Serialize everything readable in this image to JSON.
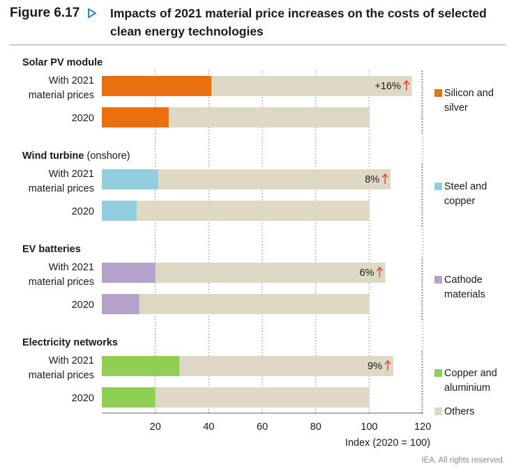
{
  "figure": {
    "number": "Figure 6.17",
    "title": "Impacts of 2021 material price increases on the costs of selected clean energy technologies",
    "source": "IEA. All rights reserved."
  },
  "chart_data": {
    "type": "bar",
    "orientation": "horizontal",
    "stacked": true,
    "xlabel": "Index (2020 = 100)",
    "xlim": [
      0,
      120
    ],
    "xticks": [
      20,
      40,
      60,
      80,
      100,
      120
    ],
    "grid": "vertical dotted",
    "row_labels": [
      "With 2021 material prices",
      "2020"
    ],
    "panels": [
      {
        "title": "Solar PV module",
        "title_suffix": "",
        "material_label": "Silicon and silver",
        "material_color": "#e8700e",
        "rows": [
          {
            "label": "With 2021 material prices",
            "material": 41,
            "total": 116
          },
          {
            "label": "2020",
            "material": 25,
            "total": 100
          }
        ],
        "increase_label": "+16%"
      },
      {
        "title": "Wind turbine",
        "title_suffix": "(onshore)",
        "material_label": "Steel and copper",
        "material_color": "#92cde0",
        "rows": [
          {
            "label": "With 2021 material prices",
            "material": 21,
            "total": 108
          },
          {
            "label": "2020",
            "material": 13,
            "total": 100
          }
        ],
        "increase_label": "8%"
      },
      {
        "title": "EV batteries",
        "title_suffix": "",
        "material_label": "Cathode materials",
        "material_color": "#b4a2cb",
        "rows": [
          {
            "label": "With 2021 material prices",
            "material": 20,
            "total": 106
          },
          {
            "label": "2020",
            "material": 14,
            "total": 100
          }
        ],
        "increase_label": "6%"
      },
      {
        "title": "Electricity networks",
        "title_suffix": "",
        "material_label": "Copper and aluminium",
        "material_color": "#8fd054",
        "rows": [
          {
            "label": "With 2021 material prices",
            "material": 29,
            "total": 109
          },
          {
            "label": "2020",
            "material": 20,
            "total": 100
          }
        ],
        "increase_label": "9%"
      }
    ],
    "others": {
      "label": "Others",
      "color": "#ddd9c5"
    },
    "increase_arrow_color": "#e8433a"
  }
}
